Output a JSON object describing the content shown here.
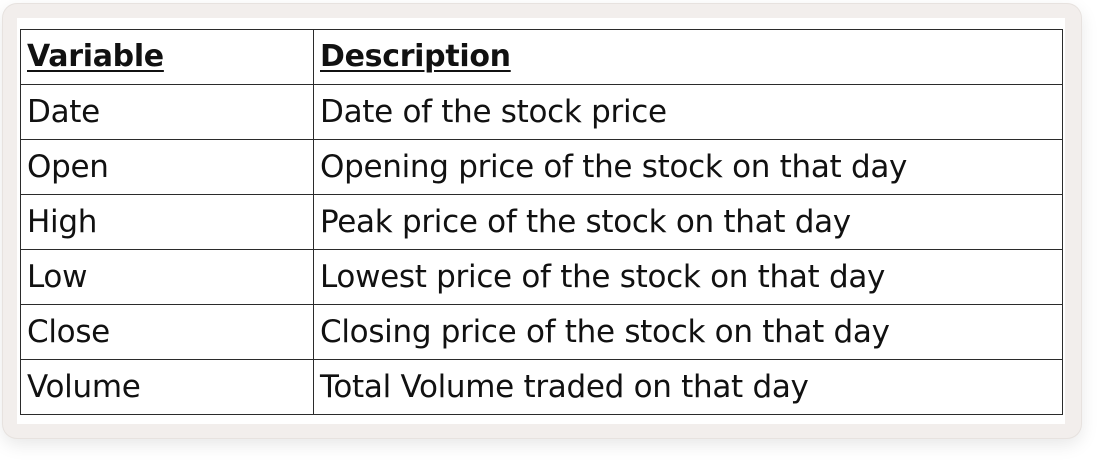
{
  "table": {
    "headers": [
      "Variable",
      "Description"
    ],
    "rows": [
      [
        "Date",
        "Date of the stock price"
      ],
      [
        "Open",
        "Opening price of the stock on that day"
      ],
      [
        "High",
        "Peak price of the stock on that day"
      ],
      [
        "Low",
        "Lowest price of the stock on that day"
      ],
      [
        "Close",
        "Closing price of the stock on that day"
      ],
      [
        "Volume",
        "Total Volume traded on that day"
      ]
    ]
  },
  "colors": {
    "card_background": "#f2eeec",
    "border": "#2b2b2b",
    "text": "#111111"
  }
}
